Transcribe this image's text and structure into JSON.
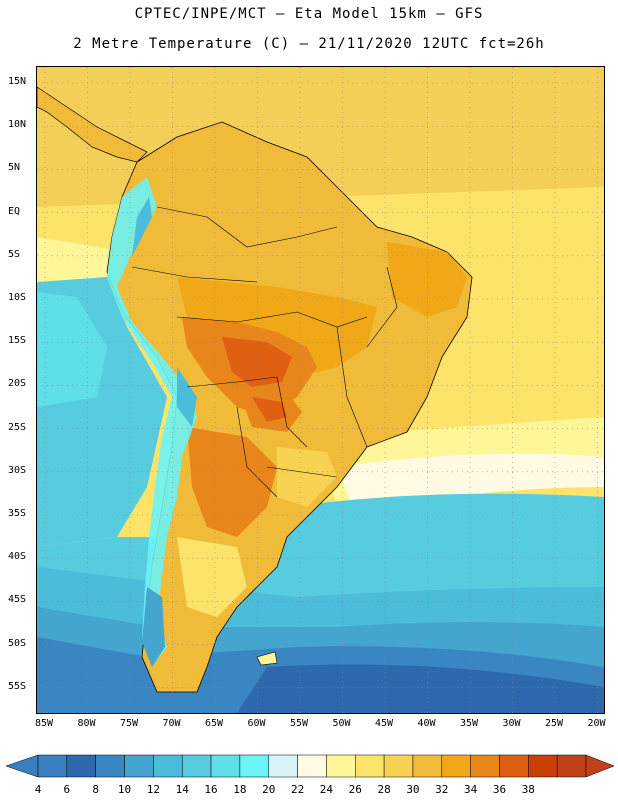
{
  "header": {
    "title_line1": "CPTEC/INPE/MCT –  Eta Model 15km – GFS",
    "title_line2": "2 Metre Temperature (C) – 21/11/2020 12UTC fct=26h"
  },
  "axes": {
    "lat_labels": [
      "15N",
      "10N",
      "5N",
      "EQ",
      "5S",
      "10S",
      "15S",
      "20S",
      "25S",
      "30S",
      "35S",
      "40S",
      "45S",
      "50S",
      "55S"
    ],
    "lon_labels": [
      "85W",
      "80W",
      "75W",
      "70W",
      "65W",
      "60W",
      "55W",
      "50W",
      "45W",
      "40W",
      "35W",
      "30W",
      "25W",
      "20W"
    ]
  },
  "colorbar": {
    "levels": [
      "4",
      "6",
      "8",
      "10",
      "12",
      "14",
      "16",
      "18",
      "20",
      "22",
      "24",
      "26",
      "28",
      "30",
      "32",
      "34",
      "36",
      "38"
    ],
    "colors": [
      "#3a7fc0",
      "#2e69ad",
      "#3a86c3",
      "#44a5cf",
      "#4bbcd9",
      "#57ccdf",
      "#5fdfe8",
      "#6cf3f5",
      "#d7f4fb",
      "#fffae4",
      "#fff599",
      "#fee36a",
      "#f8d252",
      "#f0bb39",
      "#f0a718",
      "#e8851b",
      "#de6010",
      "#c84008",
      "#c0411a"
    ],
    "low_color": "#3a7fc0",
    "high_color": "#c0411a"
  },
  "map_colors": {
    "ocean_north": "#f4cf58",
    "ocean_mid": "#fee36a",
    "ocean_light": "#fff599",
    "ocean_pale": "#fffae4",
    "ocean_cyan": "#57ccdf",
    "ocean_teal": "#4bbcd9",
    "ocean_blue": "#44a5cf",
    "ocean_deep": "#3a86c3",
    "ocean_darkest": "#2e69ad",
    "land_base": "#f0bb39",
    "land_hot": "#f0a718",
    "land_hotter": "#e8851b",
    "land_hottest": "#de6010",
    "andes_cold": "#6cf3f5",
    "andes_colder": "#4bbcd9",
    "patagonia": "#fee36a",
    "border": "#000000",
    "grid": "#888888"
  },
  "regions": [
    {
      "name": "north-pacific-warm"
    },
    {
      "name": "south-america-land"
    },
    {
      "name": "andes-cordillera"
    },
    {
      "name": "pantanal-hotspot"
    },
    {
      "name": "southern-ocean"
    }
  ]
}
